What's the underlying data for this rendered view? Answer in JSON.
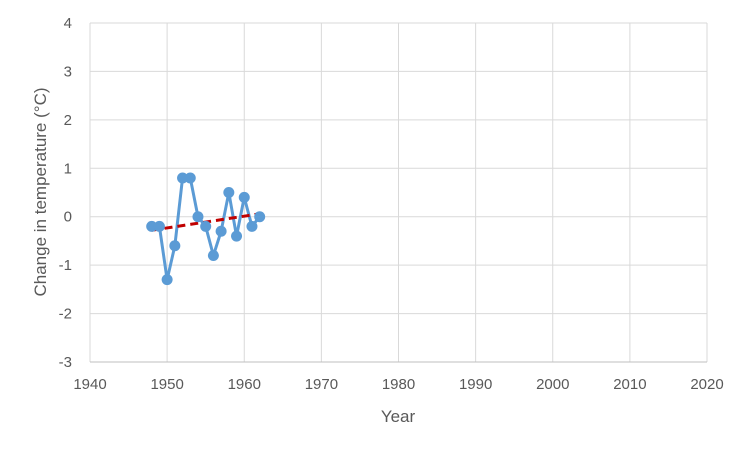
{
  "chart_data": {
    "type": "line",
    "xlabel": "Year",
    "ylabel": "Change in temperature (°C)",
    "xlim": [
      1940,
      2020
    ],
    "ylim": [
      -3,
      4
    ],
    "x_ticks": [
      1940,
      1950,
      1960,
      1970,
      1980,
      1990,
      2000,
      2010,
      2020
    ],
    "y_ticks": [
      -3,
      -2,
      -1,
      0,
      1,
      2,
      3,
      4
    ],
    "grid": true,
    "legend": "none",
    "series": [
      {
        "style": "line-with-markers",
        "color": "#5b9bd5",
        "x": [
          1948,
          1949,
          1950,
          1951,
          1952,
          1953,
          1954,
          1955,
          1956,
          1957,
          1958,
          1959,
          1960,
          1961,
          1962
        ],
        "y": [
          -0.2,
          -0.2,
          -1.3,
          -0.6,
          0.8,
          0.8,
          0.0,
          -0.2,
          -0.8,
          -0.3,
          0.5,
          -0.4,
          0.4,
          -0.2,
          0.0
        ]
      },
      {
        "style": "dashed-trendline",
        "color": "#c00000",
        "x": [
          1948,
          1962
        ],
        "y": [
          -0.28,
          0.06
        ]
      }
    ]
  }
}
